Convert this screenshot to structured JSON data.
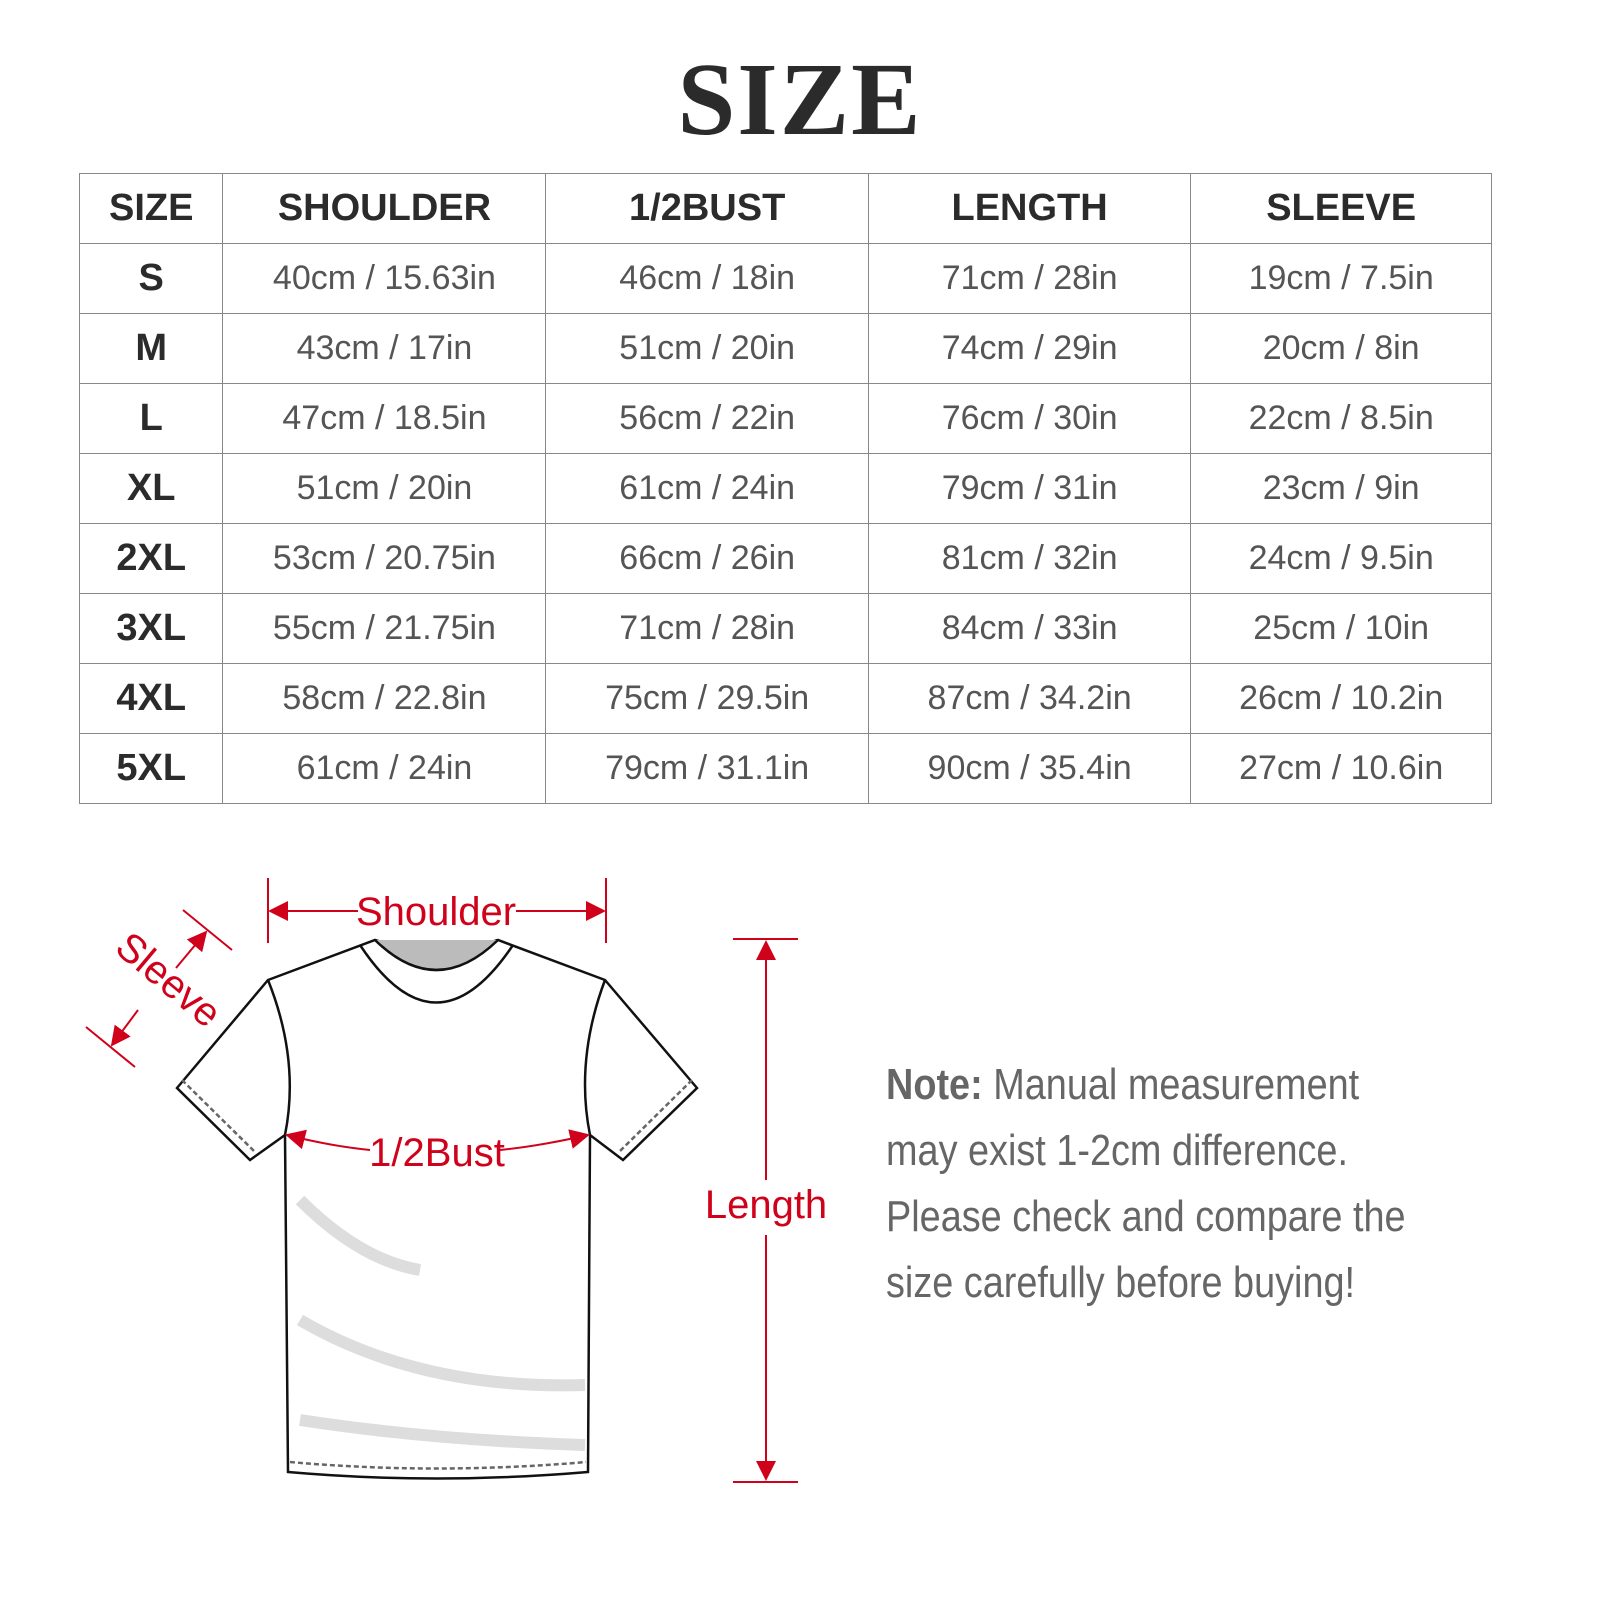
{
  "title": "SIZE",
  "table": {
    "headers": [
      "SIZE",
      "SHOULDER",
      "1/2BUST",
      "LENGTH",
      "SLEEVE"
    ],
    "rows": [
      [
        "S",
        "40cm / 15.63in",
        "46cm / 18in",
        "71cm / 28in",
        "19cm / 7.5in"
      ],
      [
        "M",
        "43cm / 17in",
        "51cm / 20in",
        "74cm / 29in",
        "20cm / 8in"
      ],
      [
        "L",
        "47cm / 18.5in",
        "56cm / 22in",
        "76cm / 30in",
        "22cm / 8.5in"
      ],
      [
        "XL",
        "51cm / 20in",
        "61cm / 24in",
        "79cm / 31in",
        "23cm / 9in"
      ],
      [
        "2XL",
        "53cm / 20.75in",
        "66cm / 26in",
        "81cm / 32in",
        "24cm / 9.5in"
      ],
      [
        "3XL",
        "55cm / 21.75in",
        "71cm / 28in",
        "84cm / 33in",
        "25cm / 10in"
      ],
      [
        "4XL",
        "58cm / 22.8in",
        "75cm / 29.5in",
        "87cm / 34.2in",
        "26cm / 10.2in"
      ],
      [
        "5XL",
        "61cm / 24in",
        "79cm / 31.1in",
        "90cm / 35.4in",
        "27cm / 10.6in"
      ]
    ]
  },
  "diagram": {
    "labels": {
      "shoulder": "Shoulder",
      "sleeve": "Sleeve",
      "bust": "1/2Bust",
      "length": "Length"
    },
    "accent_color": "#d0021b"
  },
  "note": {
    "label": "Note:",
    "text": " Manual measurement may exist 1-2cm difference. Please check and compare the size carefully before buying!"
  }
}
